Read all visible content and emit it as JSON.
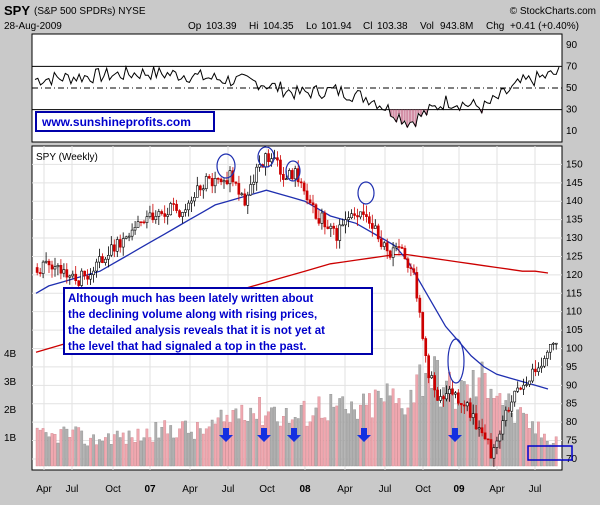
{
  "header": {
    "symbol": "SPY",
    "name": "(S&P 500 SPDRs) NYSE",
    "copyright": "© StockCharts.com",
    "date": "28-Aug-2009",
    "quote": {
      "op": "103.39",
      "hi": "104.35",
      "lo": "101.94",
      "cl": "103.38",
      "vol": "943.8M",
      "chg": "+0.41 (+0.40%)"
    },
    "labels": {
      "op": "Op",
      "hi": "Hi",
      "lo": "Lo",
      "cl": "Cl",
      "vol": "Vol",
      "chg": "Chg"
    }
  },
  "watermark": "www.sunshineprofits.com",
  "main_label": "SPY (Weekly)",
  "annotation_text": [
    "Although much has been lately written about",
    "the declining volume along with rising prices,",
    "the detailed analysis reveals that it is not yet at",
    "the level that had signaled a top in the past."
  ],
  "chart_data": [
    {
      "type": "line",
      "name": "rsi_panel",
      "ylim": [
        0,
        100
      ],
      "y_ticks": [
        10,
        30,
        50,
        70,
        90
      ],
      "reference_lines": [
        30,
        50,
        70
      ],
      "x": [
        "2006-04",
        "2006-07",
        "2006-10",
        "2007-01",
        "2007-04",
        "2007-07",
        "2007-10",
        "2008-01",
        "2008-04",
        "2008-07",
        "2008-10",
        "2009-01",
        "2009-04",
        "2009-07",
        "2009-08"
      ],
      "values": [
        58,
        60,
        62,
        64,
        62,
        58,
        55,
        45,
        48,
        40,
        18,
        38,
        32,
        55,
        64
      ]
    },
    {
      "type": "candlestick",
      "name": "price_panel",
      "ylim": [
        67,
        155
      ],
      "y_ticks": [
        70,
        75,
        80,
        85,
        90,
        95,
        100,
        105,
        110,
        115,
        120,
        125,
        130,
        135,
        140,
        145,
        150
      ],
      "x_tick_labels": [
        "Apr",
        "Jul",
        "Oct",
        "07",
        "Apr",
        "Jul",
        "Oct",
        "08",
        "Apr",
        "Jul",
        "Oct",
        "09",
        "Apr",
        "Jul"
      ],
      "price": {
        "dates": [
          "2006-04",
          "2006-05",
          "2006-06",
          "2006-07",
          "2006-08",
          "2006-09",
          "2006-10",
          "2006-11",
          "2006-12",
          "2007-01",
          "2007-02",
          "2007-03",
          "2007-04",
          "2007-05",
          "2007-06",
          "2007-07",
          "2007-08",
          "2007-09",
          "2007-10",
          "2007-11",
          "2007-12",
          "2008-01",
          "2008-02",
          "2008-03",
          "2008-04",
          "2008-05",
          "2008-06",
          "2008-07",
          "2008-08",
          "2008-09",
          "2008-10",
          "2008-11",
          "2008-12",
          "2009-01",
          "2009-02",
          "2009-03",
          "2009-04",
          "2009-05",
          "2009-06",
          "2009-07",
          "2009-08"
        ],
        "close": [
          122,
          123,
          120,
          118,
          121,
          124,
          128,
          131,
          134,
          136,
          138,
          137,
          141,
          145,
          146,
          147,
          140,
          148,
          153,
          146,
          147,
          138,
          135,
          130,
          135,
          139,
          132,
          125,
          128,
          120,
          95,
          85,
          88,
          85,
          78,
          72,
          82,
          90,
          93,
          95,
          103
        ]
      },
      "ma_blue": [
        115,
        117,
        118,
        119,
        120,
        121,
        123,
        125,
        127,
        129,
        131,
        133,
        135,
        137,
        139,
        140,
        141,
        142,
        143,
        142,
        141,
        140,
        138,
        136,
        135,
        134,
        132,
        130,
        128,
        124,
        118,
        112,
        106,
        102,
        98,
        95,
        93,
        92,
        91,
        90,
        89
      ],
      "ma_red": [
        99,
        100,
        101,
        102,
        103,
        104,
        105,
        106,
        108,
        109,
        110,
        111,
        112,
        113,
        114,
        115,
        116,
        117,
        118,
        119,
        120,
        121,
        122,
        123,
        123.5,
        124,
        124.5,
        125,
        125.5,
        125.5,
        125,
        124.5,
        124,
        123.5,
        123,
        122.5,
        122,
        121.5,
        121,
        121,
        120.5
      ]
    },
    {
      "type": "bar",
      "name": "volume_panel",
      "ylim": [
        0,
        4.5
      ],
      "y_tick_labels": [
        "1B",
        "2B",
        "3B",
        "4B"
      ],
      "y_ticks": [
        1,
        2,
        3,
        4
      ],
      "values": [
        1.1,
        1.0,
        1.2,
        1.1,
        0.9,
        1.0,
        1.1,
        1.0,
        1.1,
        1.2,
        1.3,
        1.4,
        1.2,
        1.3,
        1.5,
        1.8,
        2.3,
        1.9,
        2.1,
        1.8,
        1.7,
        2.0,
        2.2,
        2.1,
        1.9,
        2.0,
        2.3,
        2.5,
        2.2,
        2.8,
        3.6,
        3.0,
        2.6,
        2.7,
        3.0,
        3.2,
        2.4,
        1.7,
        1.5,
        1.1,
        1.0
      ]
    }
  ]
}
